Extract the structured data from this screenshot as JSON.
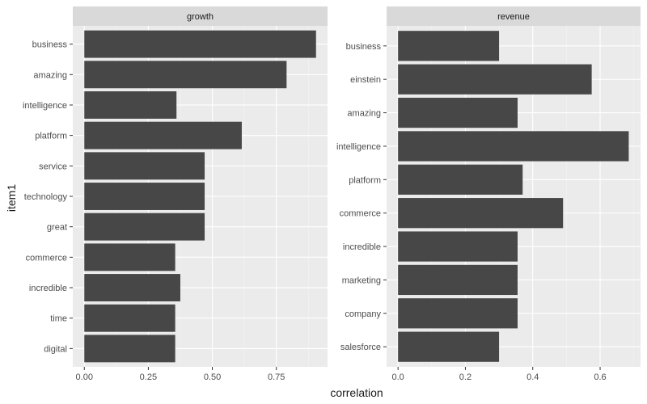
{
  "chart_data": [
    {
      "type": "bar",
      "orientation": "horizontal",
      "facet_title": "growth",
      "categories": [
        "business",
        "amazing",
        "intelligence",
        "platform",
        "service",
        "technology",
        "great",
        "commerce",
        "incredible",
        "time",
        "digital"
      ],
      "values": [
        0.905,
        0.79,
        0.36,
        0.615,
        0.47,
        0.47,
        0.47,
        0.355,
        0.375,
        0.355,
        0.355
      ],
      "xlim": [
        -0.045,
        0.95
      ],
      "xticks": [
        0,
        0.25,
        0.5,
        0.75
      ],
      "xtick_labels": [
        "0.00",
        "0.25",
        "0.50",
        "0.75"
      ]
    },
    {
      "type": "bar",
      "orientation": "horizontal",
      "facet_title": "revenue",
      "categories": [
        "business",
        "einstein",
        "amazing",
        "intelligence",
        "platform",
        "commerce",
        "incredible",
        "marketing",
        "company",
        "salesforce"
      ],
      "values": [
        0.3,
        0.575,
        0.355,
        0.685,
        0.37,
        0.49,
        0.355,
        0.355,
        0.355,
        0.3
      ],
      "xlim": [
        -0.034,
        0.72
      ],
      "xticks": [
        0,
        0.2,
        0.4,
        0.6
      ],
      "xtick_labels": [
        "0.0",
        "0.2",
        "0.4",
        "0.6"
      ]
    }
  ],
  "axes": {
    "xlabel": "correlation",
    "ylabel": "item1"
  },
  "colors": {
    "bar": "#474747",
    "panel_bg": "#ebebeb",
    "strip_bg": "#d9d9d9",
    "grid_major": "#ffffff",
    "grid_minor": "#f3f3f3",
    "text_dark": "#1a1a1a",
    "text_tick": "#4d4d4d",
    "tick_mark": "#333333"
  }
}
